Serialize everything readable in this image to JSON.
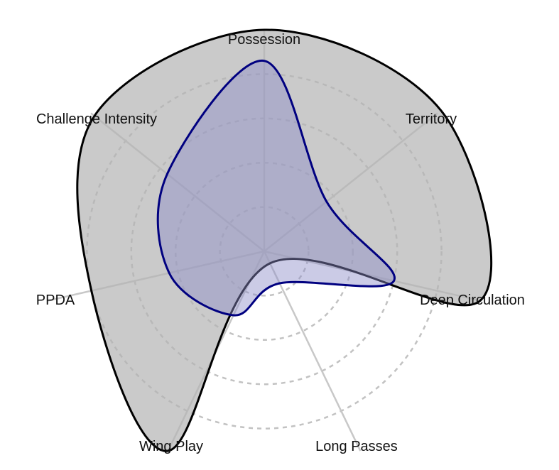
{
  "chart_data": {
    "type": "radar",
    "axes": [
      "Possession",
      "Territory",
      "Deep Circulation",
      "Long Passes",
      "Wing Play",
      "PPDA",
      "Challenge Intensity"
    ],
    "rmax": 5,
    "ring_values": [
      1,
      2,
      3,
      4
    ],
    "grid": true,
    "series": [
      {
        "values": [
          5.0,
          5.1,
          5.0,
          0.3,
          5.0,
          4.0,
          4.9
        ],
        "color": "#000000",
        "fill": "#b3b3b3",
        "fill_opacity": 0.7
      },
      {
        "values": [
          4.3,
          1.8,
          3.0,
          0.8,
          1.6,
          2.2,
          2.8
        ],
        "color": "#000080",
        "fill": "#8c8cc8",
        "fill_opacity": 0.45
      }
    ]
  }
}
